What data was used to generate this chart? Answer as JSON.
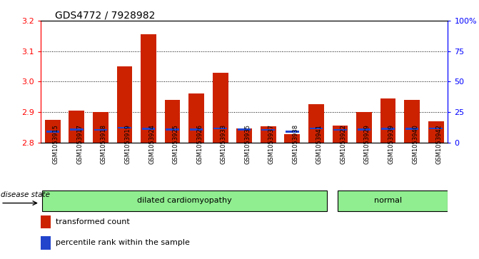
{
  "title": "GDS4772 / 7928982",
  "samples": [
    "GSM1053915",
    "GSM1053917",
    "GSM1053918",
    "GSM1053919",
    "GSM1053924",
    "GSM1053925",
    "GSM1053926",
    "GSM1053933",
    "GSM1053935",
    "GSM1053937",
    "GSM1053938",
    "GSM1053941",
    "GSM1053922",
    "GSM1053929",
    "GSM1053939",
    "GSM1053940",
    "GSM1053942"
  ],
  "red_values": [
    2.875,
    2.905,
    2.9,
    3.05,
    3.155,
    2.94,
    2.96,
    3.03,
    2.845,
    2.852,
    2.828,
    2.925,
    2.855,
    2.9,
    2.945,
    2.94,
    2.87
  ],
  "blue_positions": [
    2.833,
    2.84,
    2.838,
    2.845,
    2.842,
    2.84,
    2.84,
    2.843,
    2.84,
    2.838,
    2.832,
    2.843,
    2.838,
    2.84,
    2.842,
    2.842,
    2.843
  ],
  "blue_heights": [
    0.006,
    0.006,
    0.006,
    0.006,
    0.006,
    0.006,
    0.006,
    0.006,
    0.006,
    0.006,
    0.006,
    0.006,
    0.006,
    0.006,
    0.006,
    0.006,
    0.006
  ],
  "groups": [
    {
      "label": "dilated cardiomyopathy",
      "n": 12,
      "color": "#90ee90"
    },
    {
      "label": "normal",
      "n": 5,
      "color": "#90ee90"
    }
  ],
  "disease_state_label": "disease state",
  "ylim": [
    2.8,
    3.2
  ],
  "yticks": [
    2.8,
    2.9,
    3.0,
    3.1,
    3.2
  ],
  "right_yticks": [
    0,
    25,
    50,
    75,
    100
  ],
  "right_ytick_labels": [
    "0",
    "25",
    "50",
    "75",
    "100%"
  ],
  "bar_color": "#cc2200",
  "blue_color": "#2244cc",
  "plot_bg_color": "#ffffff",
  "label_bg_color": "#d3d3d3",
  "legend_red_label": "transformed count",
  "legend_blue_label": "percentile rank within the sample"
}
